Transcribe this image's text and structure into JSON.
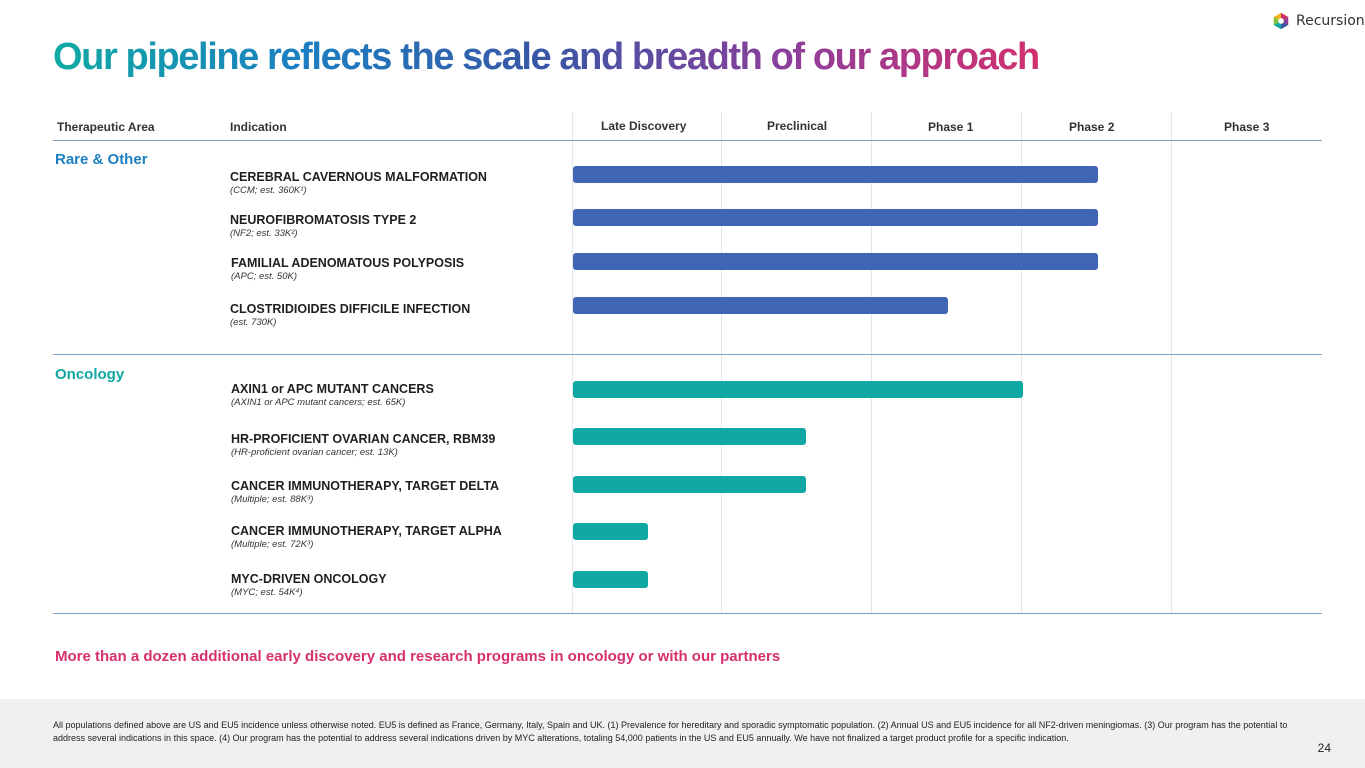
{
  "brand": {
    "name": "Recursion",
    "logo_icon": "hexagon-logo-icon",
    "colors": {
      "title_gradient": [
        "#10a9a3",
        "#1b7fc1",
        "#3a56a5",
        "#8e3e9a",
        "#d1306e"
      ],
      "rare_bar": "#3f65b4",
      "oncology_bar": "#0fa8a3",
      "rare_label": "#1b7fc1",
      "oncology_label": "#0fa8a3",
      "tagline": "#d6306f"
    }
  },
  "title": "Our pipeline reflects the scale and breadth of our approach",
  "headers": {
    "therapeutic_area": "Therapeutic Area",
    "indication": "Indication",
    "stages": [
      "Late Discovery",
      "Preclinical",
      "Phase 1",
      "Phase 2",
      "Phase 3"
    ]
  },
  "sections": {
    "rare": {
      "label": "Rare & Other",
      "items": [
        {
          "name": "CEREBRAL CAVERNOUS MALFORMATION",
          "sub": "(CCM; est. 360K¹)",
          "progress": 0.7
        },
        {
          "name": "NEUROFIBROMATOSIS TYPE 2",
          "sub": "(NF2; est. 33K²)",
          "progress": 0.7
        },
        {
          "name": "FAMILIAL ADENOMATOUS POLYPOSIS",
          "sub": "(APC; est. 50K)",
          "progress": 0.7
        },
        {
          "name": "CLOSTRIDIOIDES DIFFICILE INFECTION",
          "sub": "(est. 730K)",
          "progress": 0.5
        }
      ]
    },
    "oncology": {
      "label": "Oncology",
      "items": [
        {
          "name": "AXIN1 or APC MUTANT CANCERS",
          "sub": "(AXIN1 or APC mutant cancers; est. 65K)",
          "progress": 0.6
        },
        {
          "name": "HR-PROFICIENT OVARIAN CANCER, RBM39",
          "sub": "(HR-proficient ovarian cancer; est. 13K)",
          "progress": 0.31
        },
        {
          "name": "CANCER IMMUNOTHERAPY, TARGET DELTA",
          "sub": "(Multiple; est. 88K³)",
          "progress": 0.31
        },
        {
          "name": "CANCER IMMUNOTHERAPY, TARGET ALPHA",
          "sub": "(Multiple; est. 72K³)",
          "progress": 0.1
        },
        {
          "name": "MYC-DRIVEN ONCOLOGY",
          "sub": "(MYC; est. 54K⁴)",
          "progress": 0.1
        }
      ]
    }
  },
  "tagline": "More than a dozen additional early discovery and research programs in oncology or with our partners",
  "footnote": "All populations defined above are US and EU5 incidence unless otherwise noted. EU5 is defined as France, Germany, Italy, Spain and UK. (1) Prevalence for hereditary and sporadic symptomatic population. (2) Annual US and EU5 incidence for all NF2-driven meningiomas. (3) Our program has the potential to address several indications in this space. (4) Our program has the potential to address several indications driven by MYC alterations, totaling 54,000 patients in the US and EU5 annually. We have not finalized a target product profile for a specific indication.",
  "page_number": "24"
}
